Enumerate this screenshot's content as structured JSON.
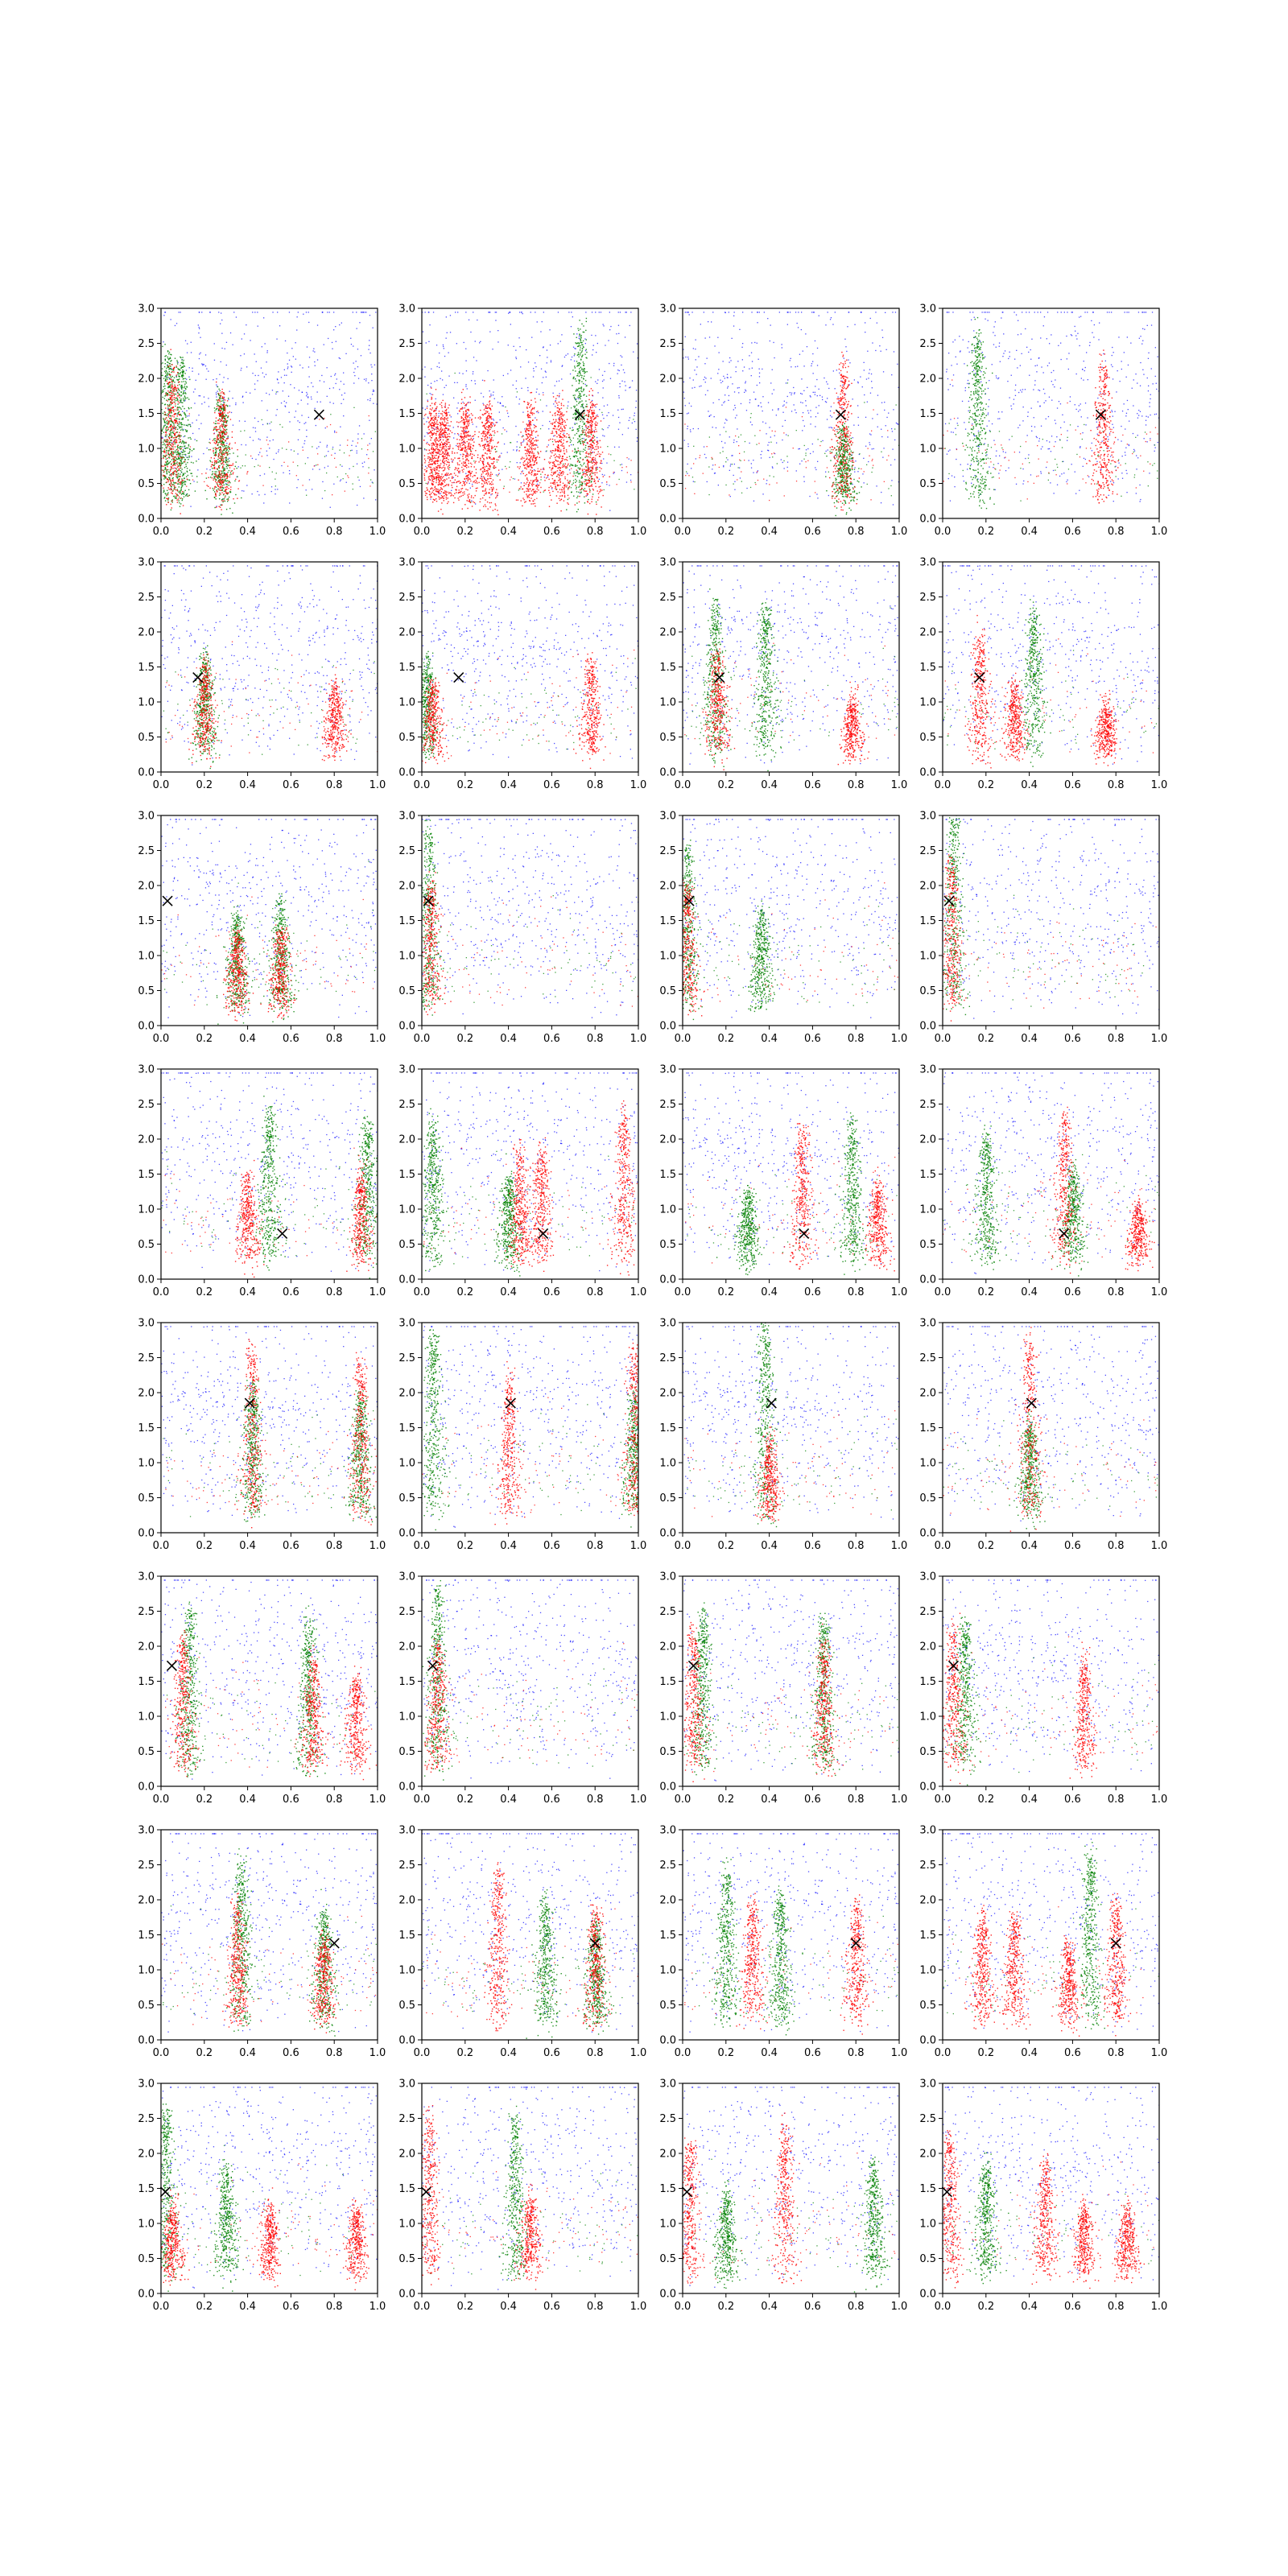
{
  "colors": {
    "background": "#0000ff",
    "red": "#ff0000",
    "green": "#008000",
    "marker": "#000000",
    "axes": "#000000"
  },
  "chart_data": {
    "type": "scatter",
    "layout": {
      "rows": 8,
      "cols": 4
    },
    "xlim": [
      0.0,
      1.0
    ],
    "ylim": [
      0.0,
      3.0
    ],
    "x_ticks": [
      "0.0",
      "0.2",
      "0.4",
      "0.6",
      "0.8",
      "1.0"
    ],
    "y_ticks": [
      "0.0",
      "0.5",
      "1.0",
      "1.5",
      "2.0",
      "2.5",
      "3.0"
    ],
    "grid": false,
    "legend": "none",
    "marker_symbol": "x",
    "rows": [
      {
        "marker": [
          0.73,
          1.48
        ],
        "panels": [
          {
            "red_clusters": [
              [
                0.05,
                2.1
              ],
              [
                0.28,
                1.7
              ]
            ],
            "green_clusters": [
              [
                0.03,
                2.3
              ],
              [
                0.09,
                2.2
              ],
              [
                0.28,
                1.7
              ]
            ]
          },
          {
            "red_clusters": [
              [
                0.05,
                1.6
              ],
              [
                0.1,
                1.6
              ],
              [
                0.2,
                1.6
              ],
              [
                0.3,
                1.6
              ],
              [
                0.5,
                1.6
              ],
              [
                0.63,
                1.6
              ],
              [
                0.78,
                1.6
              ]
            ],
            "green_clusters": [
              [
                0.73,
                2.7
              ]
            ]
          },
          {
            "red_clusters": [
              [
                0.74,
                2.2
              ]
            ],
            "green_clusters": [
              [
                0.74,
                1.2
              ]
            ]
          },
          {
            "red_clusters": [
              [
                0.74,
                2.2
              ]
            ],
            "green_clusters": [
              [
                0.16,
                2.6
              ]
            ]
          }
        ]
      },
      {
        "marker": [
          0.17,
          1.35
        ],
        "panels": [
          {
            "red_clusters": [
              [
                0.2,
                1.5
              ],
              [
                0.8,
                1.2
              ]
            ],
            "green_clusters": [
              [
                0.2,
                1.6
              ]
            ]
          },
          {
            "red_clusters": [
              [
                0.05,
                1.2
              ],
              [
                0.78,
                1.5
              ]
            ],
            "green_clusters": [
              [
                0.02,
                1.5
              ]
            ]
          },
          {
            "red_clusters": [
              [
                0.16,
                1.7
              ],
              [
                0.78,
                1.0
              ]
            ],
            "green_clusters": [
              [
                0.15,
                2.4
              ],
              [
                0.38,
                2.3
              ]
            ]
          },
          {
            "red_clusters": [
              [
                0.17,
                1.9
              ],
              [
                0.33,
                1.2
              ],
              [
                0.75,
                0.9
              ]
            ],
            "green_clusters": [
              [
                0.42,
                2.3
              ]
            ]
          }
        ]
      },
      {
        "marker": [
          0.03,
          1.78
        ],
        "panels": [
          {
            "red_clusters": [
              [
                0.35,
                1.3
              ],
              [
                0.55,
                1.3
              ]
            ],
            "green_clusters": [
              [
                0.35,
                1.6
              ],
              [
                0.55,
                1.7
              ]
            ]
          },
          {
            "red_clusters": [
              [
                0.04,
                2.0
              ]
            ],
            "green_clusters": [
              [
                0.03,
                2.8
              ]
            ]
          },
          {
            "red_clusters": [
              [
                0.02,
                2.0
              ]
            ],
            "green_clusters": [
              [
                0.02,
                2.5
              ],
              [
                0.36,
                1.6
              ]
            ]
          },
          {
            "red_clusters": [
              [
                0.04,
                2.3
              ]
            ],
            "green_clusters": [
              [
                0.05,
                3.0
              ]
            ]
          }
        ]
      },
      {
        "marker": [
          0.56,
          0.65
        ],
        "panels": [
          {
            "red_clusters": [
              [
                0.4,
                1.5
              ],
              [
                0.92,
                1.5
              ]
            ],
            "green_clusters": [
              [
                0.5,
                2.4
              ],
              [
                0.95,
                2.2
              ]
            ]
          },
          {
            "red_clusters": [
              [
                0.45,
                1.8
              ],
              [
                0.55,
                1.8
              ],
              [
                0.93,
                2.3
              ]
            ],
            "green_clusters": [
              [
                0.05,
                2.2
              ],
              [
                0.4,
                1.4
              ]
            ]
          },
          {
            "red_clusters": [
              [
                0.55,
                2.1
              ],
              [
                0.9,
                1.3
              ]
            ],
            "green_clusters": [
              [
                0.78,
                2.2
              ],
              [
                0.3,
                1.2
              ]
            ]
          },
          {
            "red_clusters": [
              [
                0.56,
                2.3
              ],
              [
                0.9,
                1.0
              ]
            ],
            "green_clusters": [
              [
                0.2,
                2.0
              ],
              [
                0.6,
                1.5
              ]
            ]
          }
        ]
      },
      {
        "marker": [
          0.41,
          1.85
        ],
        "panels": [
          {
            "red_clusters": [
              [
                0.42,
                2.6
              ],
              [
                0.92,
                2.4
              ]
            ],
            "green_clusters": [
              [
                0.42,
                2.0
              ],
              [
                0.92,
                1.9
              ]
            ]
          },
          {
            "red_clusters": [
              [
                0.4,
                2.2
              ],
              [
                0.98,
                2.6
              ]
            ],
            "green_clusters": [
              [
                0.05,
                2.8
              ],
              [
                0.98,
                2.0
              ]
            ]
          },
          {
            "red_clusters": [
              [
                0.4,
                1.3
              ]
            ],
            "green_clusters": [
              [
                0.38,
                3.0
              ]
            ]
          },
          {
            "red_clusters": [
              [
                0.4,
                2.8
              ]
            ],
            "green_clusters": [
              [
                0.4,
                1.5
              ]
            ]
          }
        ]
      },
      {
        "marker": [
          0.05,
          1.72
        ],
        "panels": [
          {
            "red_clusters": [
              [
                0.1,
                2.1
              ],
              [
                0.7,
                1.8
              ],
              [
                0.9,
                1.5
              ]
            ],
            "green_clusters": [
              [
                0.13,
                2.5
              ],
              [
                0.68,
                2.3
              ]
            ]
          },
          {
            "red_clusters": [
              [
                0.07,
                2.0
              ]
            ],
            "green_clusters": [
              [
                0.07,
                2.8
              ]
            ]
          },
          {
            "red_clusters": [
              [
                0.05,
                2.2
              ],
              [
                0.65,
                2.0
              ]
            ],
            "green_clusters": [
              [
                0.09,
                2.4
              ],
              [
                0.65,
                2.3
              ]
            ]
          },
          {
            "red_clusters": [
              [
                0.05,
                2.3
              ],
              [
                0.65,
                1.8
              ]
            ],
            "green_clusters": [
              [
                0.1,
                2.3
              ]
            ]
          }
        ]
      },
      {
        "marker": [
          0.8,
          1.38
        ],
        "panels": [
          {
            "red_clusters": [
              [
                0.35,
                1.9
              ],
              [
                0.75,
                1.4
              ]
            ],
            "green_clusters": [
              [
                0.37,
                2.5
              ],
              [
                0.75,
                1.8
              ]
            ]
          },
          {
            "red_clusters": [
              [
                0.35,
                2.4
              ],
              [
                0.8,
                1.8
              ]
            ],
            "green_clusters": [
              [
                0.57,
                2.0
              ],
              [
                0.8,
                1.6
              ]
            ]
          },
          {
            "red_clusters": [
              [
                0.32,
                1.9
              ],
              [
                0.8,
                1.9
              ]
            ],
            "green_clusters": [
              [
                0.2,
                2.4
              ],
              [
                0.45,
                2.0
              ]
            ]
          },
          {
            "red_clusters": [
              [
                0.18,
                1.7
              ],
              [
                0.33,
                1.7
              ],
              [
                0.8,
                1.9
              ],
              [
                0.58,
                1.3
              ]
            ],
            "green_clusters": [
              [
                0.68,
                2.6
              ]
            ]
          }
        ]
      },
      {
        "marker": [
          0.02,
          1.45
        ],
        "panels": [
          {
            "red_clusters": [
              [
                0.05,
                1.2
              ],
              [
                0.5,
                1.2
              ],
              [
                0.9,
                1.2
              ]
            ],
            "green_clusters": [
              [
                0.02,
                2.6
              ],
              [
                0.3,
                1.8
              ]
            ]
          },
          {
            "red_clusters": [
              [
                0.03,
                2.5
              ],
              [
                0.5,
                1.3
              ]
            ],
            "green_clusters": [
              [
                0.43,
                2.5
              ]
            ]
          },
          {
            "red_clusters": [
              [
                0.03,
                2.1
              ],
              [
                0.47,
                2.3
              ]
            ],
            "green_clusters": [
              [
                0.88,
                1.8
              ],
              [
                0.2,
                1.4
              ]
            ]
          },
          {
            "red_clusters": [
              [
                0.03,
                2.2
              ],
              [
                0.47,
                1.8
              ],
              [
                0.65,
                1.2
              ],
              [
                0.85,
                1.2
              ]
            ],
            "green_clusters": [
              [
                0.2,
                1.8
              ]
            ]
          }
        ]
      }
    ]
  }
}
